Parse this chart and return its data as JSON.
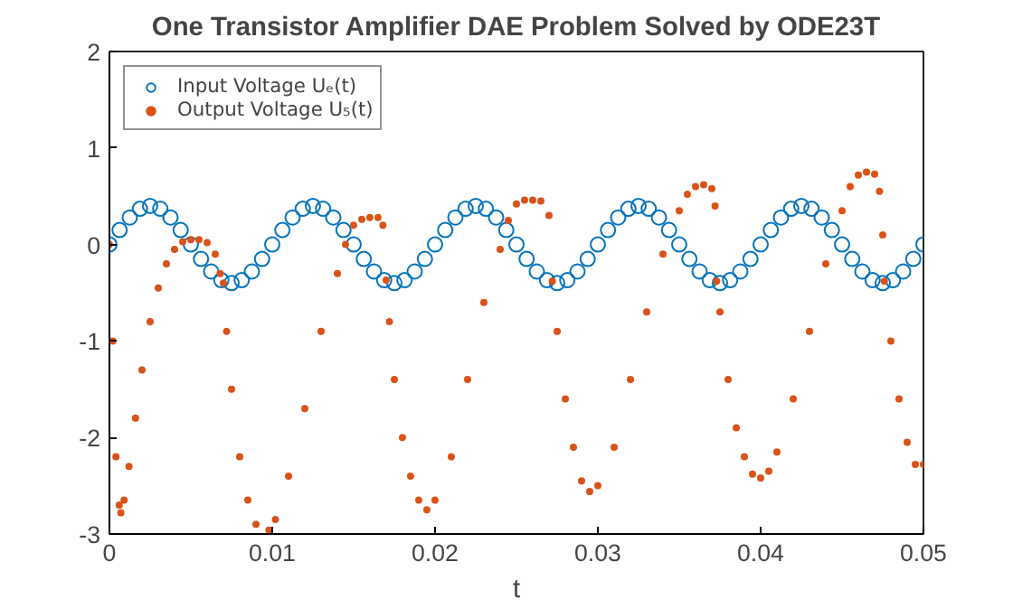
{
  "chart_data": {
    "type": "scatter",
    "title": "One Transistor Amplifier DAE Problem Solved by ODE23T",
    "xlabel": "t",
    "xlim": [
      0,
      0.05
    ],
    "ylim": [
      -3,
      2
    ],
    "xticks": [
      0,
      0.01,
      0.02,
      0.03,
      0.04,
      0.05
    ],
    "yticks": [
      -3,
      -2,
      -1,
      0,
      1,
      2
    ],
    "grid": false,
    "legend": "top left",
    "marker": "circle",
    "series": [
      {
        "name": "Input Voltage Uₑ(t)",
        "color": "#0072bd",
        "x": [
          0,
          0.000625,
          0.00125,
          0.001875,
          0.0025,
          0.003125,
          0.00375,
          0.004375,
          0.005,
          0.005625,
          0.00625,
          0.006875,
          0.0075,
          0.008125,
          0.00875,
          0.009375,
          0.01,
          0.010625,
          0.01125,
          0.011875,
          0.0125,
          0.013125,
          0.01375,
          0.014375,
          0.015,
          0.015625,
          0.01625,
          0.016875,
          0.0175,
          0.018125,
          0.01875,
          0.019375,
          0.02,
          0.020625,
          0.02125,
          0.021875,
          0.0225,
          0.023125,
          0.02375,
          0.024375,
          0.025,
          0.025625,
          0.02625,
          0.026875,
          0.0275,
          0.028125,
          0.02875,
          0.029375,
          0.03,
          0.030625,
          0.03125,
          0.031875,
          0.0325,
          0.033125,
          0.03375,
          0.034375,
          0.035,
          0.035625,
          0.03625,
          0.036875,
          0.0375,
          0.038125,
          0.03875,
          0.039375,
          0.04,
          0.040625,
          0.04125,
          0.041875,
          0.0425,
          0.043125,
          0.04375,
          0.044375,
          0.045,
          0.045625,
          0.04625,
          0.046875,
          0.0475,
          0.048125,
          0.04875,
          0.049375,
          0.05
        ],
        "values": [
          0,
          0.15,
          0.28,
          0.37,
          0.4,
          0.37,
          0.28,
          0.15,
          0,
          -0.15,
          -0.28,
          -0.37,
          -0.4,
          -0.37,
          -0.28,
          -0.15,
          0,
          0.15,
          0.28,
          0.37,
          0.4,
          0.37,
          0.28,
          0.15,
          0,
          -0.15,
          -0.28,
          -0.37,
          -0.4,
          -0.37,
          -0.28,
          -0.15,
          0,
          0.15,
          0.28,
          0.37,
          0.4,
          0.37,
          0.28,
          0.15,
          0,
          -0.15,
          -0.28,
          -0.37,
          -0.4,
          -0.37,
          -0.28,
          -0.15,
          0,
          0.15,
          0.28,
          0.37,
          0.4,
          0.37,
          0.28,
          0.15,
          0,
          -0.15,
          -0.28,
          -0.37,
          -0.4,
          -0.37,
          -0.28,
          -0.15,
          0,
          0.15,
          0.28,
          0.37,
          0.4,
          0.37,
          0.28,
          0.15,
          0,
          -0.15,
          -0.28,
          -0.37,
          -0.4,
          -0.37,
          -0.28,
          -0.15,
          0
        ]
      },
      {
        "name": "Output Voltage U₅(t)",
        "color": "#d95319",
        "x": [
          0,
          0.0002,
          0.0004,
          0.0006,
          0.0007,
          0.0009,
          0.0012,
          0.0016,
          0.002,
          0.0025,
          0.003,
          0.0035,
          0.004,
          0.0045,
          0.005,
          0.0055,
          0.006,
          0.0065,
          0.0068,
          0.007,
          0.0072,
          0.0075,
          0.008,
          0.0085,
          0.009,
          0.0098,
          0.0102,
          0.011,
          0.012,
          0.013,
          0.014,
          0.0145,
          0.015,
          0.0155,
          0.016,
          0.0165,
          0.0168,
          0.017,
          0.0172,
          0.0175,
          0.018,
          0.0185,
          0.019,
          0.0195,
          0.02,
          0.021,
          0.022,
          0.023,
          0.024,
          0.0245,
          0.025,
          0.0255,
          0.026,
          0.0265,
          0.027,
          0.0272,
          0.0275,
          0.028,
          0.0285,
          0.029,
          0.0295,
          0.03,
          0.031,
          0.032,
          0.033,
          0.034,
          0.035,
          0.0355,
          0.036,
          0.0365,
          0.037,
          0.0372,
          0.0373,
          0.0375,
          0.038,
          0.0385,
          0.039,
          0.0395,
          0.04,
          0.0405,
          0.041,
          0.042,
          0.043,
          0.044,
          0.045,
          0.0455,
          0.046,
          0.0465,
          0.047,
          0.0473,
          0.0475,
          0.0476,
          0.048,
          0.0485,
          0.049,
          0.0495,
          0.05
        ],
        "values": [
          0,
          -1.0,
          -2.2,
          -2.7,
          -2.78,
          -2.65,
          -2.3,
          -1.8,
          -1.3,
          -0.8,
          -0.45,
          -0.2,
          -0.05,
          0.03,
          0.05,
          0.05,
          0.02,
          -0.1,
          -0.3,
          -0.4,
          -0.9,
          -1.5,
          -2.2,
          -2.65,
          -2.9,
          -2.96,
          -2.85,
          -2.4,
          -1.7,
          -0.9,
          -0.3,
          0,
          0.2,
          0.26,
          0.28,
          0.28,
          0.2,
          -0.37,
          -0.8,
          -1.4,
          -2.0,
          -2.4,
          -2.65,
          -2.75,
          -2.65,
          -2.2,
          -1.4,
          -0.6,
          -0.05,
          0.25,
          0.42,
          0.46,
          0.46,
          0.45,
          0.3,
          -0.38,
          -0.9,
          -1.6,
          -2.1,
          -2.45,
          -2.56,
          -2.5,
          -2.1,
          -1.4,
          -0.7,
          -0.1,
          0.35,
          0.52,
          0.6,
          0.62,
          0.58,
          0.4,
          -0.38,
          -0.7,
          -1.4,
          -1.9,
          -2.2,
          -2.38,
          -2.42,
          -2.35,
          -2.15,
          -1.6,
          -0.9,
          -0.2,
          0.35,
          0.6,
          0.72,
          0.75,
          0.73,
          0.55,
          0.1,
          -0.38,
          -1.0,
          -1.6,
          -2.05,
          -2.28,
          -2.28
        ]
      }
    ]
  }
}
